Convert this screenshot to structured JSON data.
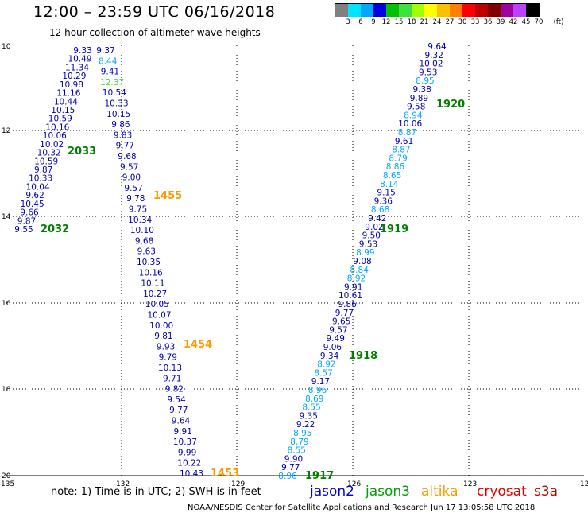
{
  "header": {
    "title": "12:00 – 23:59 UTC 06/16/2018",
    "subtitle": "12 hour collection of altimeter wave heights"
  },
  "legend": {
    "colors": [
      "#808080",
      "#00e5ff",
      "#00a8ff",
      "#0000e0",
      "#00c000",
      "#40e040",
      "#a0ff00",
      "#ffff00",
      "#ffc000",
      "#ff8000",
      "#ff0000",
      "#c00000",
      "#800000",
      "#a000a0",
      "#c040ff",
      "#000000"
    ],
    "labels": [
      "3",
      "6",
      "9",
      "12",
      "15",
      "18",
      "21",
      "24",
      "27",
      "30",
      "33",
      "36",
      "39",
      "42",
      "45",
      "70"
    ],
    "unit": "(ft)"
  },
  "axes": {
    "x_labels": [
      "-135",
      "-132",
      "-129",
      "-126",
      "-123",
      "-12"
    ],
    "y_labels": [
      "10",
      "12",
      "14",
      "16",
      "18",
      "20"
    ]
  },
  "map": {
    "tracks": [
      {
        "label": "2033",
        "color": "#008000"
      },
      {
        "label": "2032",
        "color": "#008000"
      },
      {
        "label": "1455",
        "color": "#ff9900"
      },
      {
        "label": "1454",
        "color": "#ff9900"
      },
      {
        "label": "1453",
        "color": "#ff9900"
      },
      {
        "label": "1920",
        "color": "#008000"
      },
      {
        "label": "1919",
        "color": "#008000"
      },
      {
        "label": "1918",
        "color": "#008000"
      },
      {
        "label": "1917",
        "color": "#008000"
      }
    ],
    "trackA": [
      "9.33",
      "10.49",
      "11.34",
      "10.29",
      "10.98",
      "11.16",
      "10.44",
      "10.15",
      "10.59",
      "10.16",
      "10.06",
      "10.02",
      "10.32",
      "10.59",
      "9.87",
      "10.33",
      "10.04",
      "9.62",
      "10.45",
      "9.66",
      "9.87",
      "9.55"
    ],
    "trackB": [
      "9.37",
      "8.44",
      "9.41",
      "12.37",
      "10.54",
      "10.33",
      "10.15",
      "9.86",
      "9.83",
      "9.77",
      "9.68",
      "9.57",
      "9.00",
      "9.57",
      "9.78",
      "9.75",
      "10.34",
      "10.10",
      "9.68",
      "9.63",
      "10.35",
      "10.16",
      "10.11",
      "10.27",
      "10.05",
      "10.07",
      "10.00",
      "9.81",
      "9.93",
      "9.79",
      "10.13",
      "9.71",
      "9.82",
      "9.54",
      "9.77",
      "9.64",
      "9.91",
      "10.37",
      "9.99",
      "10.22",
      "10.43"
    ],
    "trackC": [
      "9.64",
      "9.32",
      "10.02",
      "9.53",
      "8.95",
      "9.38",
      "9.89",
      "9.58",
      "8.94",
      "10.06",
      "8.87",
      "9.61",
      "8.87",
      "8.79",
      "8.86",
      "8.65",
      "8.14",
      "9.15",
      "9.36",
      "8.68",
      "9.42",
      "9.02",
      "9.50",
      "9.53",
      "8.99",
      "9.08",
      "8.84",
      "8.92",
      "9.91",
      "10.61",
      "9.86",
      "9.77",
      "9.65",
      "9.57",
      "9.49",
      "9.06",
      "9.34",
      "8.92",
      "8.57",
      "9.17",
      "8.96",
      "8.69",
      "8.55",
      "9.35",
      "9.22",
      "8.95",
      "8.79",
      "8.55",
      "9.90",
      "9.77",
      "8.96"
    ]
  },
  "footer": {
    "note": "note:  1) Time is in UTC;  2) SWH is in feet",
    "sats": [
      {
        "name": "jason2",
        "color": "#0000e0"
      },
      {
        "name": "jason3",
        "color": "#00a000"
      },
      {
        "name": "altika",
        "color": "#ff9900"
      },
      {
        "name": "cryosat",
        "color": "#e00000"
      },
      {
        "name": "s3a",
        "color": "#c00000"
      }
    ],
    "credit": "NOAA/NESDIS Center for Satellite Applications and Research    Jun 17 13:05:58 UTC 2018"
  }
}
